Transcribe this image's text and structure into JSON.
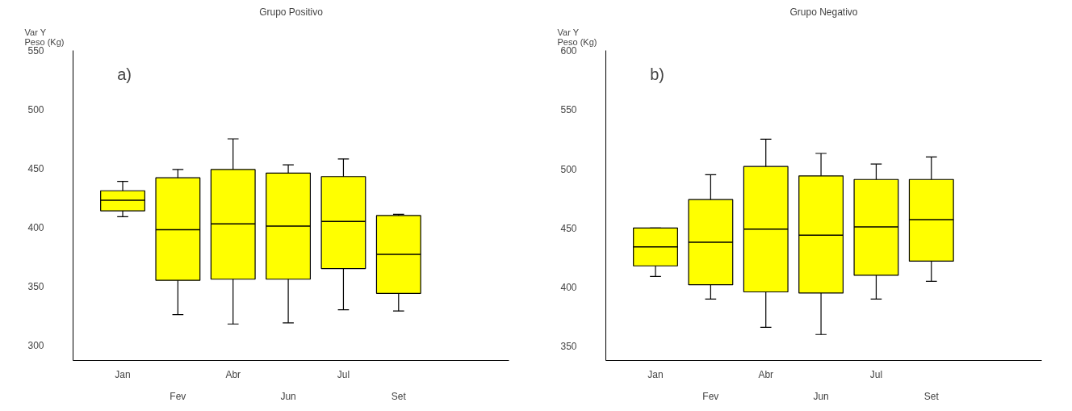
{
  "chart_data": [
    {
      "type": "box",
      "title": "Grupo Positivo",
      "ylabel": "Var Y\nPeso (Kg)",
      "annotations": [
        "a)"
      ],
      "categories": [
        "Jan",
        "Fev",
        "Abr",
        "Jun",
        "Jul",
        "Set"
      ],
      "color": "#ffff00",
      "boxes": [
        {
          "low": 409,
          "q1": 414,
          "median": 423,
          "q3": 431,
          "high": 439
        },
        {
          "low": 326,
          "q1": 355,
          "median": 398,
          "q3": 442,
          "high": 449
        },
        {
          "low": 318,
          "q1": 356,
          "median": 403,
          "q3": 449,
          "high": 475
        },
        {
          "low": 319,
          "q1": 356,
          "median": 401,
          "q3": 446,
          "high": 453
        },
        {
          "low": 330,
          "q1": 365,
          "median": 405,
          "q3": 443,
          "high": 458
        },
        {
          "low": 329,
          "q1": 344,
          "median": 377,
          "q3": 410,
          "high": 411
        }
      ],
      "ylim": [
        287,
        550
      ],
      "yticks": [
        300,
        350,
        400,
        450,
        500,
        550
      ]
    },
    {
      "type": "box",
      "title": "Grupo Negativo",
      "ylabel": "Var Y\nPeso (Kg)",
      "annotations": [
        "b)"
      ],
      "categories": [
        "Jan",
        "Fev",
        "Abr",
        "Jun",
        "Jul",
        "Set"
      ],
      "color": "#ffff00",
      "boxes": [
        {
          "low": 409,
          "q1": 418,
          "median": 434,
          "q3": 450,
          "high": 450
        },
        {
          "low": 390,
          "q1": 402,
          "median": 438,
          "q3": 474,
          "high": 495
        },
        {
          "low": 366,
          "q1": 396,
          "median": 449,
          "q3": 502,
          "high": 525
        },
        {
          "low": 360,
          "q1": 395,
          "median": 444,
          "q3": 494,
          "high": 513
        },
        {
          "low": 390,
          "q1": 410,
          "median": 451,
          "q3": 491,
          "high": 504
        },
        {
          "low": 405,
          "q1": 422,
          "median": 457,
          "q3": 491,
          "high": 510
        }
      ],
      "ylim": [
        338,
        600
      ],
      "yticks": [
        350,
        400,
        450,
        500,
        550,
        600
      ]
    }
  ]
}
